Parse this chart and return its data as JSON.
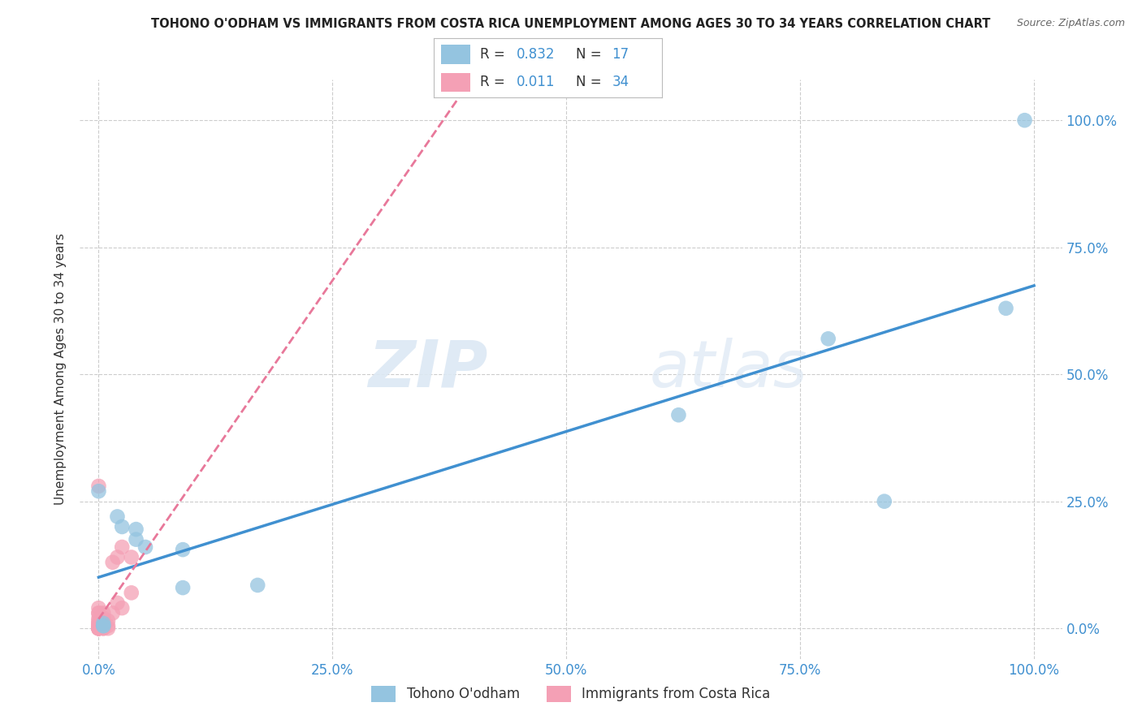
{
  "title": "TOHONO O'ODHAM VS IMMIGRANTS FROM COSTA RICA UNEMPLOYMENT AMONG AGES 30 TO 34 YEARS CORRELATION CHART",
  "source": "Source: ZipAtlas.com",
  "xlabel_blue": "Tohono O'odham",
  "xlabel_pink": "Immigrants from Costa Rica",
  "ylabel": "Unemployment Among Ages 30 to 34 years",
  "blue_R": 0.832,
  "blue_N": 17,
  "pink_R": 0.011,
  "pink_N": 34,
  "blue_color": "#94c4e0",
  "pink_color": "#f4a0b5",
  "blue_line_color": "#4090d0",
  "pink_line_color": "#e8789a",
  "watermark_zip": "ZIP",
  "watermark_atlas": "atlas",
  "blue_points_x": [
    0.0,
    0.02,
    0.025,
    0.04,
    0.04,
    0.05,
    0.09,
    0.09,
    0.17,
    0.62,
    0.78,
    0.84,
    0.97,
    0.005,
    0.005,
    0.005,
    0.99
  ],
  "blue_points_y": [
    0.27,
    0.22,
    0.2,
    0.195,
    0.175,
    0.16,
    0.155,
    0.08,
    0.085,
    0.42,
    0.57,
    0.25,
    0.63,
    0.005,
    0.005,
    0.01,
    1.0
  ],
  "pink_points_x": [
    0.0,
    0.0,
    0.0,
    0.0,
    0.0,
    0.0,
    0.0,
    0.0,
    0.0,
    0.0,
    0.0,
    0.0,
    0.0,
    0.0,
    0.0,
    0.0,
    0.005,
    0.005,
    0.005,
    0.005,
    0.005,
    0.005,
    0.005,
    0.01,
    0.01,
    0.01,
    0.015,
    0.015,
    0.02,
    0.02,
    0.025,
    0.025,
    0.035,
    0.035
  ],
  "pink_points_y": [
    0.0,
    0.0,
    0.0,
    0.0,
    0.0,
    0.0,
    0.005,
    0.005,
    0.01,
    0.01,
    0.015,
    0.02,
    0.03,
    0.03,
    0.04,
    0.28,
    0.0,
    0.0,
    0.005,
    0.01,
    0.015,
    0.02,
    0.03,
    0.0,
    0.005,
    0.015,
    0.03,
    0.13,
    0.05,
    0.14,
    0.04,
    0.16,
    0.07,
    0.14
  ],
  "xlim": [
    -0.02,
    1.03
  ],
  "ylim": [
    -0.06,
    1.08
  ],
  "xticks": [
    0.0,
    0.25,
    0.5,
    0.75,
    1.0
  ],
  "yticks": [
    0.0,
    0.25,
    0.5,
    0.75,
    1.0
  ],
  "xticklabels": [
    "0.0%",
    "25.0%",
    "50.0%",
    "75.0%",
    "100.0%"
  ],
  "yticklabels": [
    "0.0%",
    "25.0%",
    "50.0%",
    "75.0%",
    "100.0%"
  ],
  "background_color": "#ffffff",
  "grid_color": "#cccccc",
  "legend_R_blue": "0.832",
  "legend_N_blue": "17",
  "legend_R_pink": "0.011",
  "legend_N_pink": "34"
}
